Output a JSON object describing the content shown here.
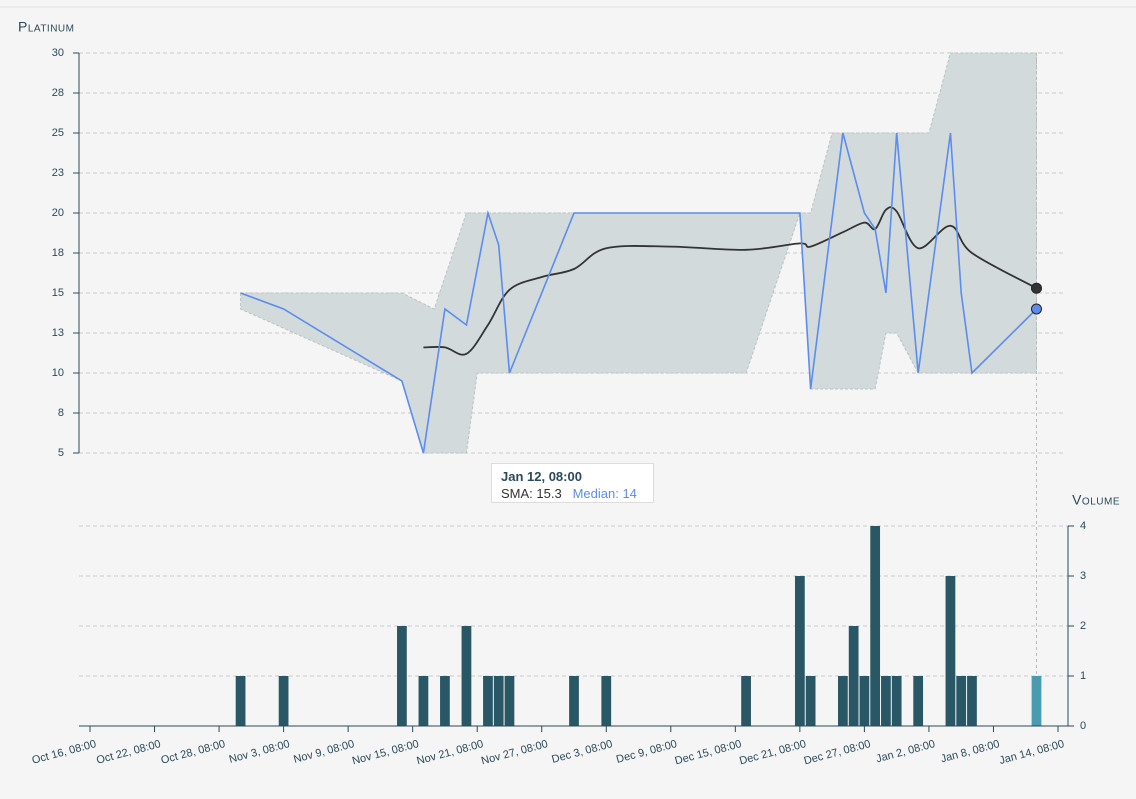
{
  "chart_data": [
    {
      "type": "line",
      "title": "Platinum",
      "xlim": [
        "Oct 16, 08:00",
        "Jan 14, 08:00"
      ],
      "ylim": [
        5,
        30
      ],
      "yticks": [
        5,
        {
          "value": 7.5,
          "label": "8"
        },
        10,
        {
          "value": 12.5,
          "label": "13"
        },
        15,
        {
          "value": 17.5,
          "label": "18"
        },
        20,
        {
          "value": 22.5,
          "label": "23"
        },
        25,
        {
          "value": 27.5,
          "label": "28"
        },
        30
      ],
      "grid": true,
      "band": {
        "color": "#d3dadb",
        "upper": {
          "x": [
            "Oct 30, 08:00",
            "Nov 14, 08:00",
            "Nov 17, 08:00",
            "Nov 20, 08:00",
            "Dec 21, 08:00",
            "Dec 22, 08:00",
            "Dec 24, 08:00",
            "Jan 2, 08:00",
            "Jan 4, 08:00",
            "Jan 12, 08:00"
          ],
          "values": [
            15,
            15,
            14,
            20,
            20,
            20,
            25,
            25,
            30,
            30
          ]
        },
        "lower": {
          "x": [
            "Oct 30, 08:00",
            "Nov 14, 08:00",
            "Nov 16, 08:00",
            "Nov 20, 08:00",
            "Nov 21, 08:00",
            "Dec 16, 08:00",
            "Dec 21, 08:00",
            "Dec 22, 08:00",
            "Dec 28, 08:00",
            "Dec 29, 08:00",
            "Dec 30, 08:00",
            "Jan 1, 08:00",
            "Jan 12, 08:00"
          ],
          "values": [
            14,
            9.5,
            5,
            5,
            10,
            10,
            20,
            9,
            9,
            12.5,
            12.5,
            10,
            10
          ]
        }
      },
      "series": [
        {
          "name": "SMA",
          "color": "#333333",
          "x": [
            "Nov 16, 08:00",
            "Nov 18, 08:00",
            "Nov 20, 08:00",
            "Nov 22, 08:00",
            "Nov 24, 08:00",
            "Nov 27, 08:00",
            "Nov 30, 08:00",
            "Dec 3, 08:00",
            "Dec 9, 08:00",
            "Dec 16, 08:00",
            "Dec 21, 08:00",
            "Dec 22, 08:00",
            "Dec 25, 08:00",
            "Dec 27, 08:00",
            "Dec 28, 08:00",
            "Dec 29, 08:00",
            "Dec 30, 08:00",
            "Jan 1, 08:00",
            "Jan 4, 08:00",
            "Jan 6, 08:00",
            "Jan 12, 08:00"
          ],
          "values": [
            11.6,
            11.6,
            11.2,
            13,
            15.2,
            16,
            16.5,
            17.8,
            17.9,
            17.7,
            18.1,
            17.9,
            18.8,
            19.4,
            19,
            20.2,
            20.1,
            17.8,
            19.2,
            17.5,
            15.3
          ]
        },
        {
          "name": "Median",
          "color": "#5b8def",
          "x": [
            "Oct 30, 08:00",
            "Nov 3, 08:00",
            "Nov 14, 08:00",
            "Nov 16, 08:00",
            "Nov 18, 08:00",
            "Nov 20, 08:00",
            "Nov 22, 08:00",
            "Nov 23, 08:00",
            "Nov 24, 08:00",
            "Nov 30, 08:00",
            "Dec 3, 08:00",
            "Dec 16, 08:00",
            "Dec 21, 08:00",
            "Dec 22, 08:00",
            "Dec 25, 08:00",
            "Dec 26, 08:00",
            "Dec 27, 08:00",
            "Dec 28, 08:00",
            "Dec 29, 08:00",
            "Dec 30, 08:00",
            "Jan 1, 08:00",
            "Jan 4, 08:00",
            "Jan 5, 08:00",
            "Jan 6, 08:00",
            "Jan 12, 08:00"
          ],
          "values": [
            15,
            14,
            9.5,
            5,
            14,
            13,
            20,
            18,
            10,
            20,
            20,
            20,
            20,
            9,
            25,
            22.5,
            20,
            19,
            15,
            25,
            10,
            25,
            15,
            10,
            14
          ]
        }
      ],
      "tooltip": {
        "x": "Jan 12, 08:00"
      }
    },
    {
      "type": "bar",
      "title": "Volume",
      "xlim": [
        "Oct 16, 08:00",
        "Jan 14, 08:00"
      ],
      "xticks": [
        "Oct 16, 08:00",
        "Oct 22, 08:00",
        "Oct 28, 08:00",
        "Nov 3, 08:00",
        "Nov 9, 08:00",
        "Nov 15, 08:00",
        "Nov 21, 08:00",
        "Nov 27, 08:00",
        "Dec 3, 08:00",
        "Dec 9, 08:00",
        "Dec 15, 08:00",
        "Dec 21, 08:00",
        "Dec 27, 08:00",
        "Jan 2, 08:00",
        "Jan 8, 08:00",
        "Jan 14, 08:00"
      ],
      "ylim": [
        0,
        4
      ],
      "yticks": [
        0,
        1,
        2,
        3,
        4
      ],
      "grid": true,
      "color": "#2a5766",
      "highlight_color": "#4a9ab0",
      "x": [
        "Oct 30, 08:00",
        "Nov 3, 08:00",
        "Nov 14, 08:00",
        "Nov 16, 08:00",
        "Nov 18, 08:00",
        "Nov 20, 08:00",
        "Nov 22, 08:00",
        "Nov 23, 08:00",
        "Nov 24, 08:00",
        "Nov 30, 08:00",
        "Dec 3, 08:00",
        "Dec 16, 08:00",
        "Dec 21, 08:00",
        "Dec 22, 08:00",
        "Dec 25, 08:00",
        "Dec 26, 08:00",
        "Dec 27, 08:00",
        "Dec 28, 08:00",
        "Dec 29, 08:00",
        "Dec 30, 08:00",
        "Jan 1, 08:00",
        "Jan 4, 08:00",
        "Jan 5, 08:00",
        "Jan 6, 08:00",
        "Jan 12, 08:00"
      ],
      "values": [
        1,
        1,
        2,
        1,
        1,
        2,
        1,
        1,
        1,
        1,
        1,
        1,
        3,
        1,
        1,
        2,
        1,
        4,
        1,
        1,
        1,
        3,
        1,
        1,
        1
      ]
    }
  ]
}
